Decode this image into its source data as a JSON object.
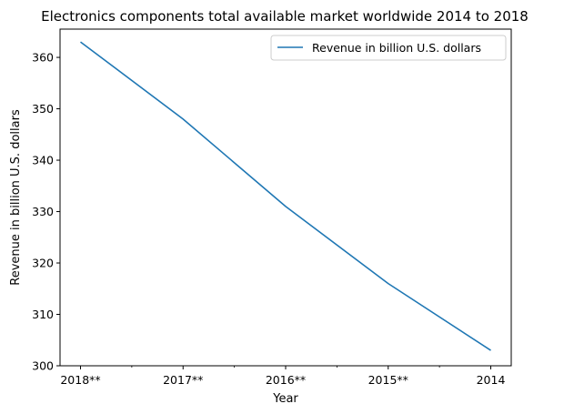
{
  "chart_data": {
    "type": "line",
    "title": "Electronics components total available market worldwide 2014 to 2018",
    "xlabel": "Year",
    "ylabel": "Revenue in billion U.S. dollars",
    "categories": [
      "2018**",
      "2017**",
      "2016**",
      "2015**",
      "2014"
    ],
    "series": [
      {
        "name": "Revenue in billion U.S. dollars",
        "values": [
          363,
          348,
          331,
          316,
          303
        ],
        "color": "#1f77b4"
      }
    ],
    "ylim": [
      300,
      365.5
    ],
    "yticks": [
      300,
      310,
      320,
      330,
      340,
      350,
      360
    ],
    "grid": false,
    "legend": "top-right"
  }
}
